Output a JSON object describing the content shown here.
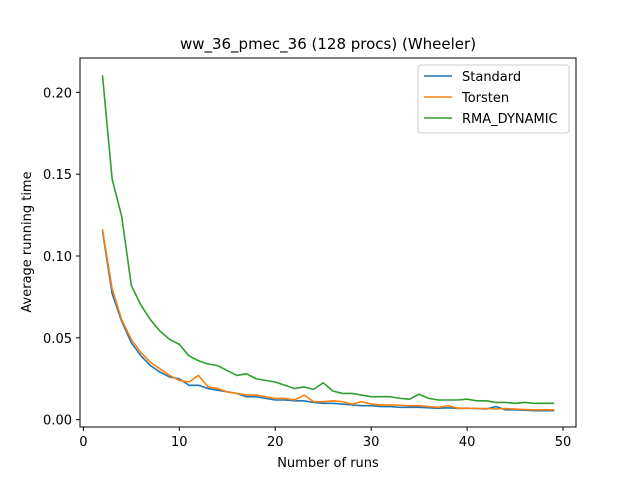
{
  "chart_data": {
    "type": "line",
    "title": "ww_36_pmec_36 (128 procs) (Wheeler)",
    "xlabel": "Number of runs",
    "ylabel": "Average running time",
    "xlim": [
      -0.35,
      51.35
    ],
    "ylim": [
      -0.0045,
      0.221
    ],
    "xticks": [
      0,
      10,
      20,
      30,
      40,
      50
    ],
    "xtick_labels": [
      "0",
      "10",
      "20",
      "30",
      "40",
      "50"
    ],
    "yticks": [
      0.0,
      0.05,
      0.1,
      0.15,
      0.2
    ],
    "ytick_labels": [
      "0.00",
      "0.05",
      "0.10",
      "0.15",
      "0.20"
    ],
    "grid": false,
    "legend_position": "top-right",
    "x": [
      2,
      3,
      4,
      5,
      6,
      7,
      8,
      9,
      10,
      11,
      12,
      13,
      14,
      15,
      16,
      17,
      18,
      19,
      20,
      21,
      22,
      23,
      24,
      25,
      26,
      27,
      28,
      29,
      30,
      31,
      32,
      33,
      34,
      35,
      36,
      37,
      38,
      39,
      40,
      41,
      42,
      43,
      44,
      45,
      46,
      47,
      48,
      49
    ],
    "series": [
      {
        "name": "Standard",
        "color": "#1f77b4",
        "values": [
          0.115,
          0.077,
          0.06,
          0.047,
          0.039,
          0.033,
          0.029,
          0.026,
          0.025,
          0.021,
          0.021,
          0.019,
          0.018,
          0.017,
          0.016,
          0.014,
          0.014,
          0.013,
          0.012,
          0.012,
          0.0115,
          0.0115,
          0.0105,
          0.01,
          0.01,
          0.0095,
          0.009,
          0.0085,
          0.0085,
          0.008,
          0.008,
          0.0075,
          0.0075,
          0.0075,
          0.0072,
          0.007,
          0.0072,
          0.0068,
          0.007,
          0.0068,
          0.0065,
          0.008,
          0.006,
          0.006,
          0.0058,
          0.0055,
          0.0055,
          0.0055
        ]
      },
      {
        "name": "Torsten",
        "color": "#ff7f0e",
        "values": [
          0.116,
          0.08,
          0.061,
          0.049,
          0.041,
          0.035,
          0.031,
          0.027,
          0.024,
          0.023,
          0.027,
          0.02,
          0.019,
          0.017,
          0.016,
          0.015,
          0.015,
          0.014,
          0.013,
          0.013,
          0.012,
          0.015,
          0.011,
          0.011,
          0.0115,
          0.011,
          0.0095,
          0.011,
          0.0095,
          0.009,
          0.009,
          0.0088,
          0.0085,
          0.0085,
          0.008,
          0.0075,
          0.0085,
          0.007,
          0.007,
          0.0068,
          0.0068,
          0.0065,
          0.0068,
          0.0065,
          0.0062,
          0.006,
          0.006,
          0.006
        ]
      },
      {
        "name": "RMA_DYNAMIC",
        "color": "#2ca02c",
        "values": [
          0.21,
          0.147,
          0.124,
          0.082,
          0.07,
          0.061,
          0.054,
          0.049,
          0.046,
          0.039,
          0.036,
          0.034,
          0.033,
          0.03,
          0.027,
          0.028,
          0.025,
          0.024,
          0.023,
          0.021,
          0.019,
          0.02,
          0.0185,
          0.0225,
          0.0175,
          0.016,
          0.016,
          0.015,
          0.014,
          0.014,
          0.014,
          0.013,
          0.0125,
          0.0155,
          0.013,
          0.012,
          0.012,
          0.012,
          0.0125,
          0.0115,
          0.0115,
          0.0105,
          0.0105,
          0.01,
          0.0105,
          0.01,
          0.01,
          0.01
        ]
      }
    ]
  }
}
